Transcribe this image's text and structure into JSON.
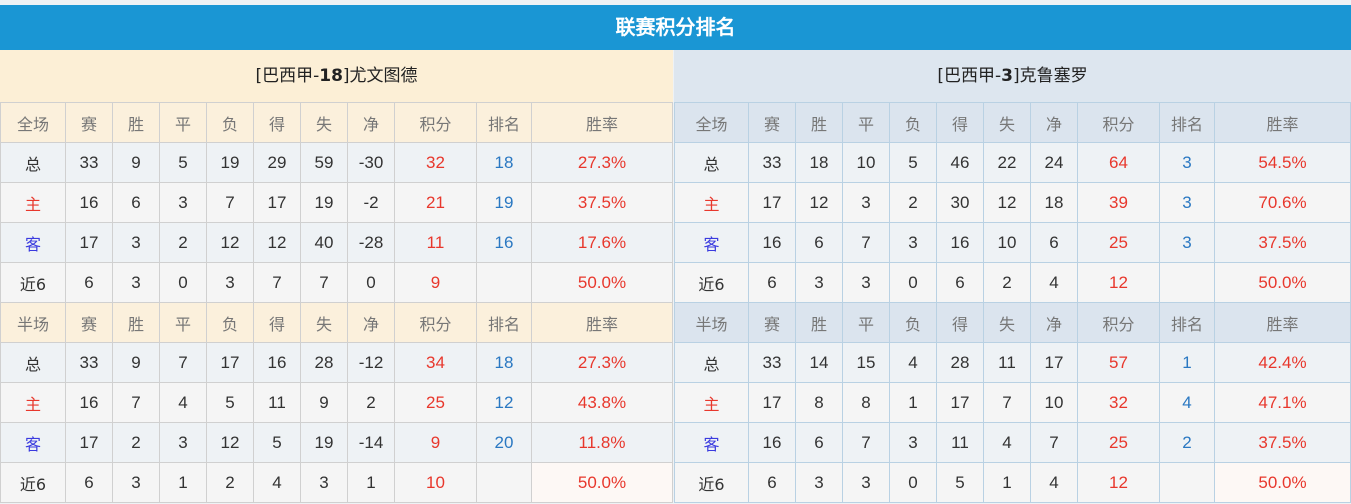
{
  "title": "联赛积分排名",
  "headers_full": [
    "全场",
    "赛",
    "胜",
    "平",
    "负",
    "得",
    "失",
    "净",
    "积分",
    "排名",
    "胜率"
  ],
  "headers_half": [
    "半场",
    "赛",
    "胜",
    "平",
    "负",
    "得",
    "失",
    "净",
    "积分",
    "排名",
    "胜率"
  ],
  "colors": {
    "title_bg": "#1a96d4",
    "points": "#e8372c",
    "rank": "#2a78c2",
    "home_label": "#e8372c",
    "away_label": "#3a3adf"
  },
  "left": {
    "team_prefix": "[巴西甲-",
    "team_rank": "18",
    "team_suffix": "]尤文图德",
    "full": [
      [
        "总",
        "33",
        "9",
        "5",
        "19",
        "29",
        "59",
        "-30",
        "32",
        "18",
        "27.3%"
      ],
      [
        "主",
        "16",
        "6",
        "3",
        "7",
        "17",
        "19",
        "-2",
        "21",
        "19",
        "37.5%"
      ],
      [
        "客",
        "17",
        "3",
        "2",
        "12",
        "12",
        "40",
        "-28",
        "11",
        "16",
        "17.6%"
      ],
      [
        "近6",
        "6",
        "3",
        "0",
        "3",
        "7",
        "7",
        "0",
        "9",
        "",
        "50.0%"
      ]
    ],
    "half": [
      [
        "总",
        "33",
        "9",
        "7",
        "17",
        "16",
        "28",
        "-12",
        "34",
        "18",
        "27.3%"
      ],
      [
        "主",
        "16",
        "7",
        "4",
        "5",
        "11",
        "9",
        "2",
        "25",
        "12",
        "43.8%"
      ],
      [
        "客",
        "17",
        "2",
        "3",
        "12",
        "5",
        "19",
        "-14",
        "9",
        "20",
        "11.8%"
      ],
      [
        "近6",
        "6",
        "3",
        "1",
        "2",
        "4",
        "3",
        "1",
        "10",
        "",
        "50.0%"
      ]
    ]
  },
  "right": {
    "team_prefix": "[巴西甲-",
    "team_rank": "3",
    "team_suffix": "]克鲁塞罗",
    "full": [
      [
        "总",
        "33",
        "18",
        "10",
        "5",
        "46",
        "22",
        "24",
        "64",
        "3",
        "54.5%"
      ],
      [
        "主",
        "17",
        "12",
        "3",
        "2",
        "30",
        "12",
        "18",
        "39",
        "3",
        "70.6%"
      ],
      [
        "客",
        "16",
        "6",
        "7",
        "3",
        "16",
        "10",
        "6",
        "25",
        "3",
        "37.5%"
      ],
      [
        "近6",
        "6",
        "3",
        "3",
        "0",
        "6",
        "2",
        "4",
        "12",
        "",
        "50.0%"
      ]
    ],
    "half": [
      [
        "总",
        "33",
        "14",
        "15",
        "4",
        "28",
        "11",
        "17",
        "57",
        "1",
        "42.4%"
      ],
      [
        "主",
        "17",
        "8",
        "8",
        "1",
        "17",
        "7",
        "10",
        "32",
        "4",
        "47.1%"
      ],
      [
        "客",
        "16",
        "6",
        "7",
        "3",
        "11",
        "4",
        "7",
        "25",
        "2",
        "37.5%"
      ],
      [
        "近6",
        "6",
        "3",
        "3",
        "0",
        "5",
        "1",
        "4",
        "12",
        "",
        "50.0%"
      ]
    ]
  }
}
